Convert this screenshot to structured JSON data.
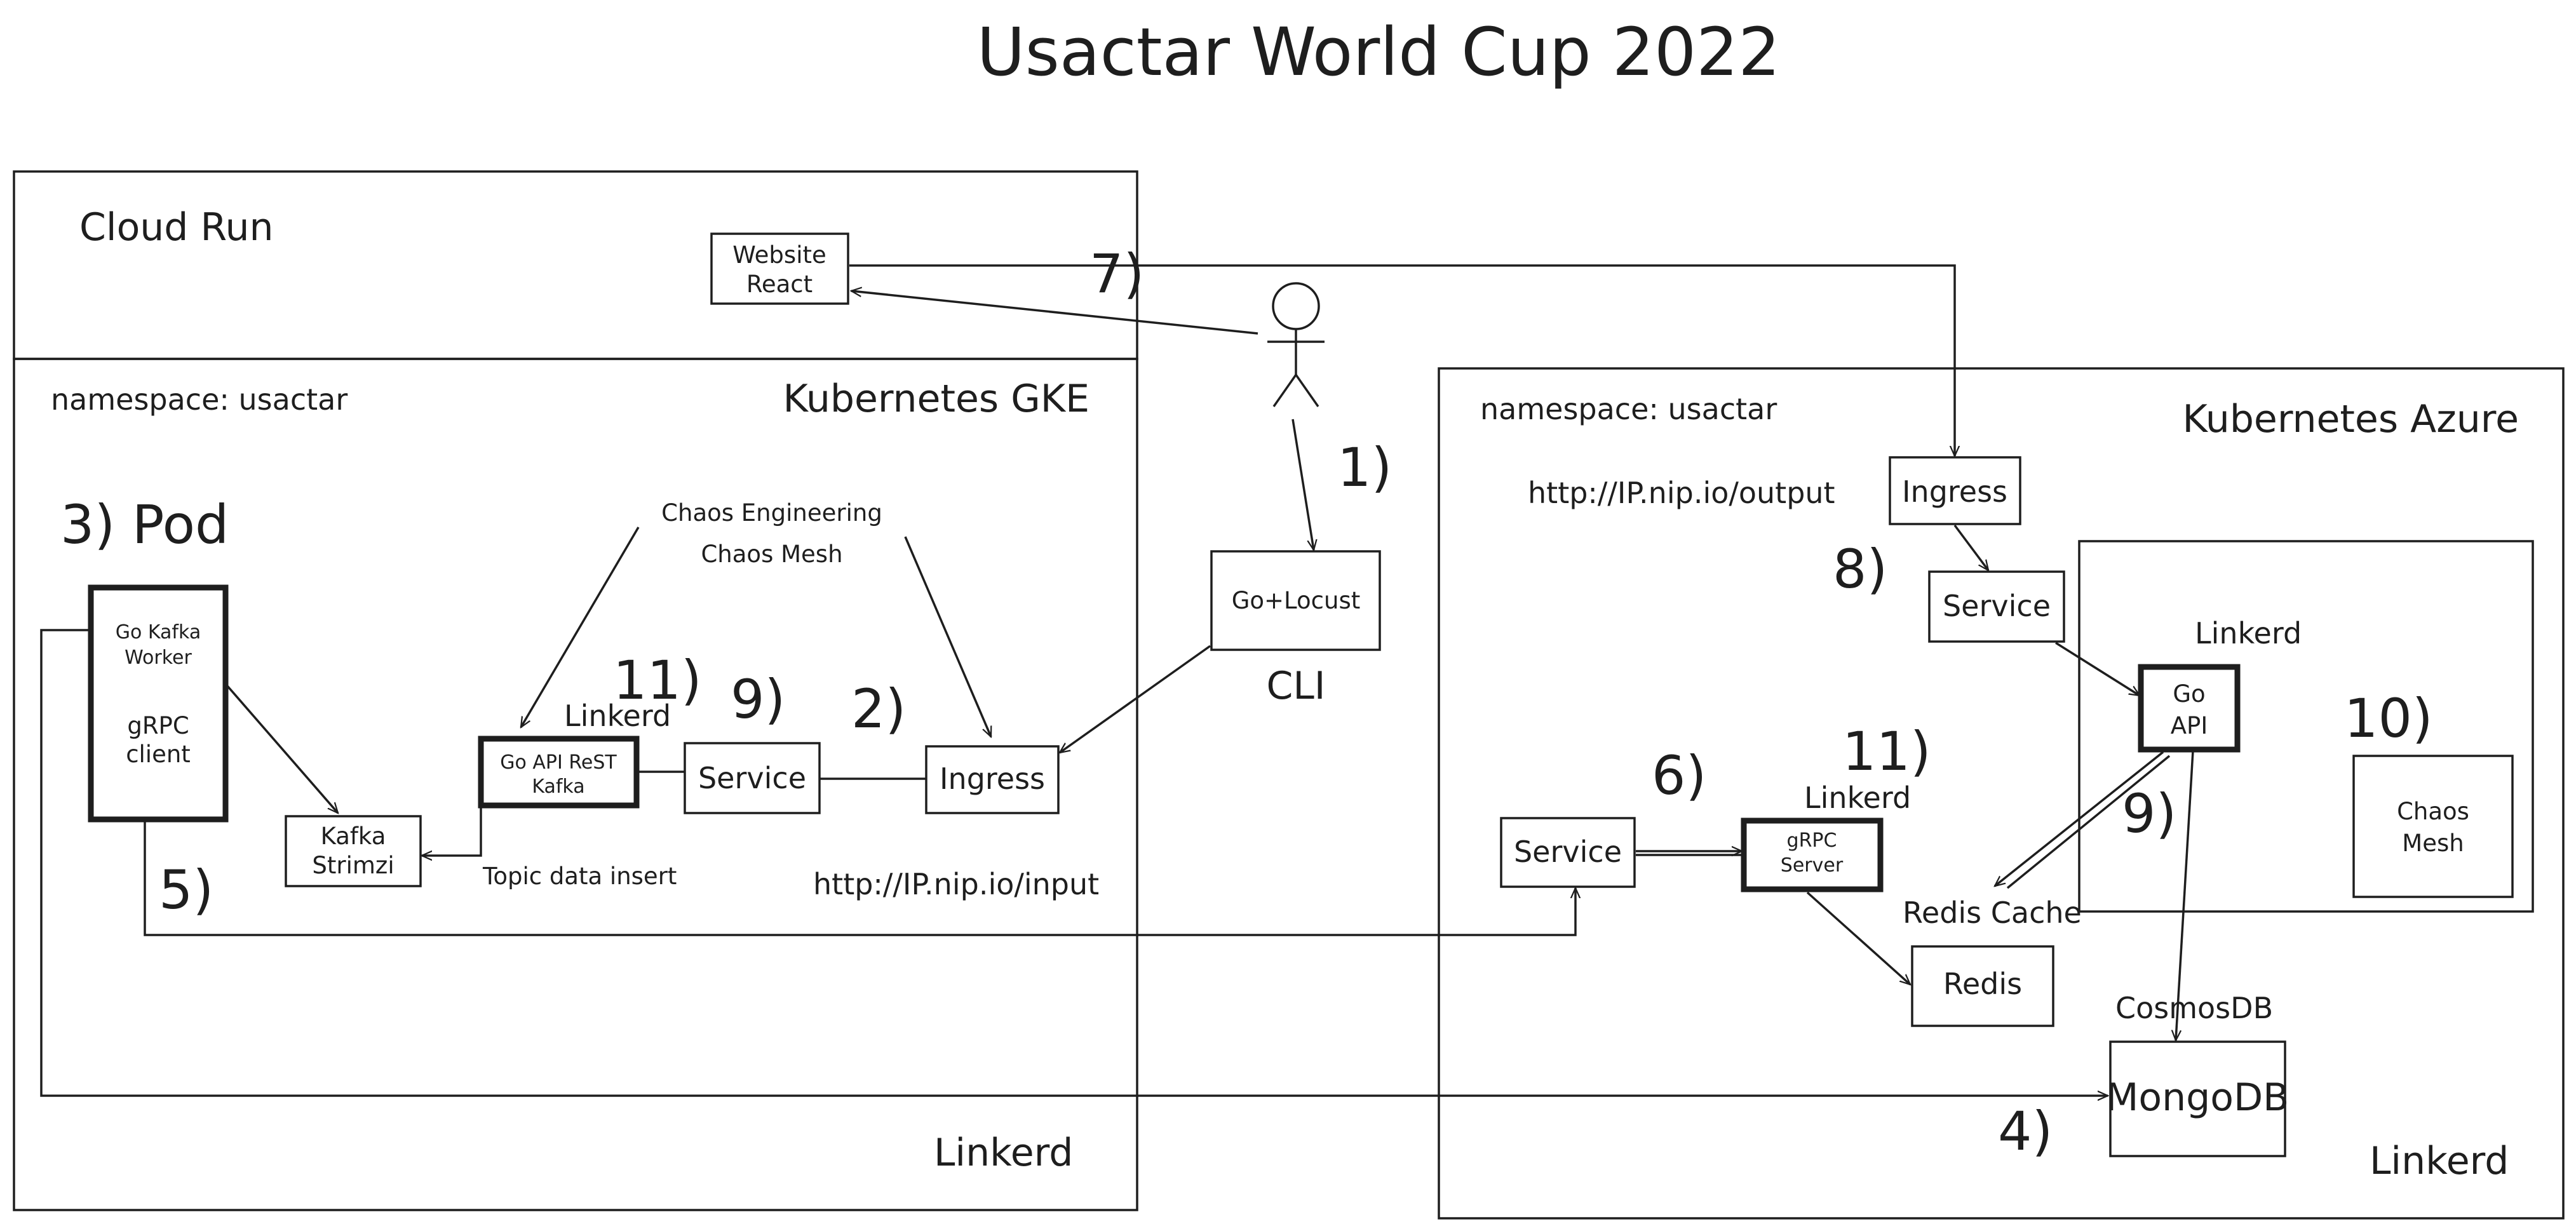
{
  "title": "Usactar World Cup 2022",
  "cloud_run": {
    "label": "Cloud Run",
    "website": [
      "Website",
      "React"
    ]
  },
  "user": {
    "step_7": "7)",
    "step_1": "1)"
  },
  "cli": {
    "box": "Go+Locust",
    "label": "CLI"
  },
  "gke": {
    "namespace": "namespace: usactar",
    "title": "Kubernetes GKE",
    "pod_label": "3) Pod",
    "pod_worker": [
      "Go Kafka",
      "Worker"
    ],
    "pod_client": [
      "gRPC",
      "client"
    ],
    "chaos": [
      "Chaos Engineering",
      "Chaos Mesh"
    ],
    "step_11": "11)",
    "linkerd": "Linkerd",
    "go_api": [
      "Go API ReST",
      "Kafka"
    ],
    "step_9": "9)",
    "service": "Service",
    "step_2": "2)",
    "ingress": "Ingress",
    "kafka": [
      "Kafka",
      "Strimzi"
    ],
    "topic": "Topic data insert",
    "step_5": "5)",
    "input_url": "http://IP.nip.io/input",
    "footer": "Linkerd"
  },
  "azure": {
    "namespace": "namespace: usactar",
    "title": "Kubernetes Azure",
    "output_url": "http://IP.nip.io/output",
    "ingress": "Ingress",
    "step_8": "8)",
    "service_top": "Service",
    "linkerd_inner": "Linkerd",
    "go_api": [
      "Go",
      "API"
    ],
    "step_10": "10)",
    "chaos": [
      "Chaos",
      "Mesh"
    ],
    "step_9": "9)",
    "step_6": "6)",
    "step_11": "11)",
    "linkerd_grpc": "Linkerd",
    "service_left": "Service",
    "grpc": [
      "gRPC",
      "Server"
    ],
    "redis_cache": "Redis Cache",
    "redis": "Redis",
    "cosmos": "CosmosDB",
    "mongo": "MongoDB",
    "step_4": "4)",
    "footer": "Linkerd"
  }
}
